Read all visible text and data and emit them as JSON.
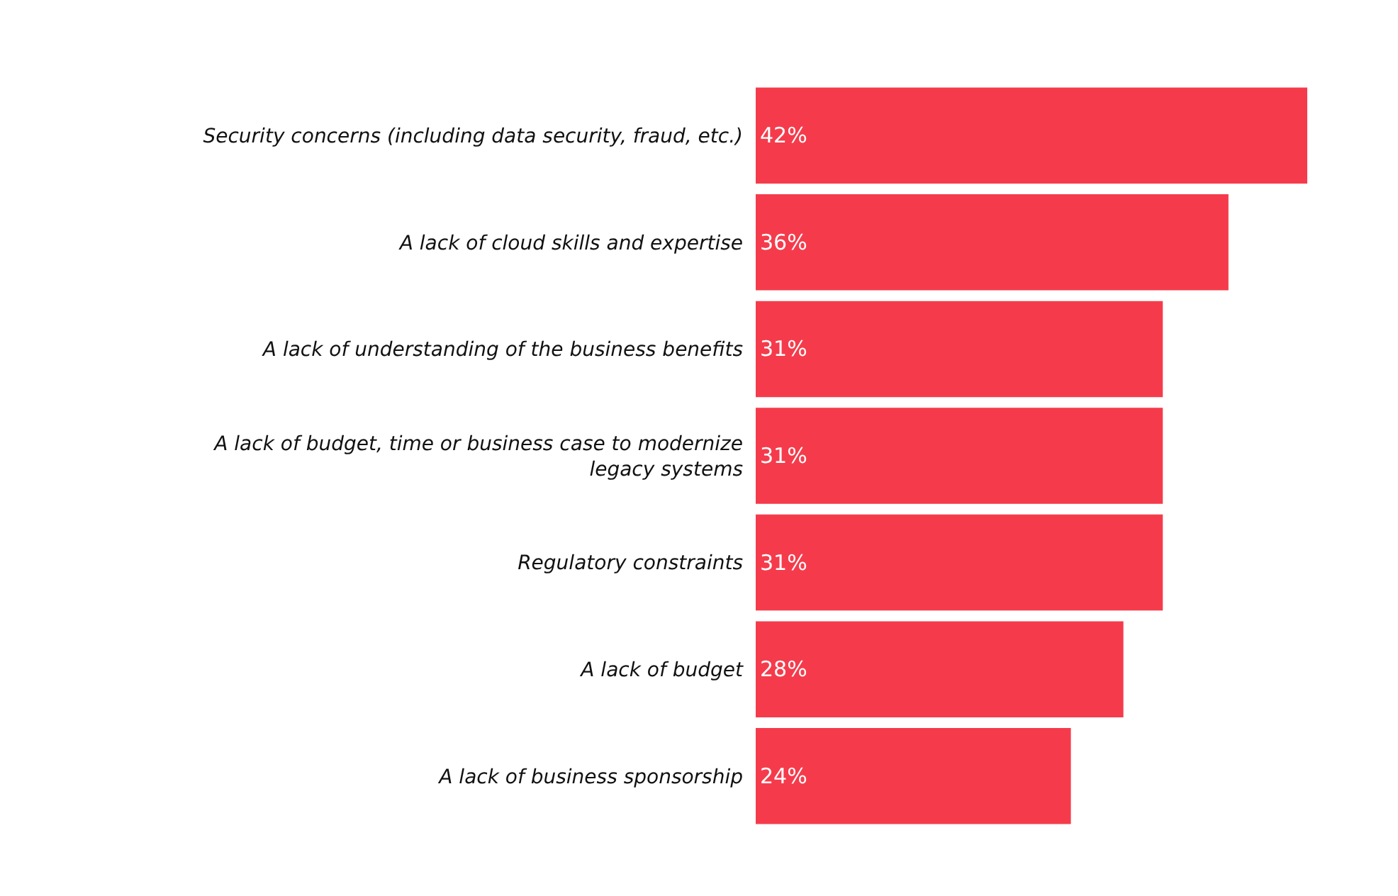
{
  "chart_data": {
    "type": "bar",
    "orientation": "horizontal",
    "categories": [
      "Security concerns (including data security, fraud, etc.)",
      "A lack of cloud skills and expertise",
      "A lack of understanding of the business benefits",
      "A lack of budget, time or business case to modernize legacy systems",
      "Regulatory constraints",
      "A lack of budget",
      "A lack of business sponsorship"
    ],
    "values": [
      42,
      36,
      31,
      31,
      31,
      28,
      24
    ],
    "value_labels": [
      "42%",
      "36%",
      "31%",
      "31%",
      "31%",
      "28%",
      "24%"
    ],
    "color": "#f53b4b",
    "xlim": [
      0,
      42
    ]
  }
}
